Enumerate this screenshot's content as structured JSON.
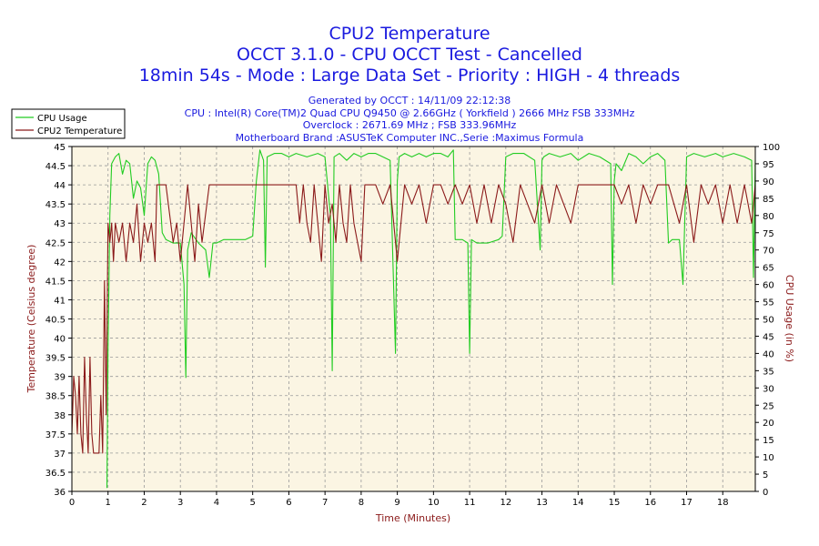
{
  "titles": {
    "line1": "CPU2 Temperature",
    "line2": "OCCT 3.1.0 - CPU OCCT Test - Cancelled",
    "line3": "18min 54s - Mode : Large Data Set - Priority : HIGH - 4 threads"
  },
  "info": {
    "line1": "Generated by OCCT : 14/11/09 22:12:38",
    "line2": "CPU : Intel(R) Core(TM)2 Quad CPU Q9450 @ 2.66GHz ( Yorkfield ) 2666 MHz FSB 333MHz",
    "line3": "Overclock : 2671.69 MHz ; FSB 333.96MHz",
    "line4": "Motherboard Brand :ASUSTeK Computer INC.,Serie :Maximus Formula"
  },
  "colors": {
    "usage": "#22cc22",
    "temperature": "#8b1a1a",
    "title": "#1a1adf",
    "axis_label": "#8b1a1a",
    "plot_bg": "#fbf5e3",
    "grid": "#9a9a9a"
  },
  "chart_data": {
    "type": "line",
    "xlabel": "Time (Minutes)",
    "ylabel_left": "Temperature (Celsius degree)",
    "ylabel_right": "CPU Usage (in %)",
    "xlim": [
      0,
      18.9
    ],
    "ylim_left": [
      36,
      45
    ],
    "ylim_right": [
      0,
      100
    ],
    "x_ticks": [
      "0",
      "1",
      "2",
      "3",
      "4",
      "5",
      "6",
      "7",
      "8",
      "9",
      "10",
      "11",
      "12",
      "13",
      "14",
      "15",
      "16",
      "17",
      "18"
    ],
    "y_ticks_left": [
      "36",
      "36.5",
      "37",
      "37.5",
      "38",
      "38.5",
      "39",
      "39.5",
      "40",
      "40.5",
      "41",
      "41.5",
      "42",
      "42.5",
      "43",
      "43.5",
      "44",
      "44.5",
      "45"
    ],
    "y_ticks_right": [
      "0",
      "5",
      "10",
      "15",
      "20",
      "25",
      "30",
      "35",
      "40",
      "45",
      "50",
      "55",
      "60",
      "65",
      "70",
      "75",
      "80",
      "85",
      "90",
      "95",
      "100"
    ],
    "grid": "vertical and horizontal dashed",
    "legend": "top-left",
    "series": [
      {
        "name": "CPU Usage",
        "axis": "right",
        "x": [
          0.97,
          1.0,
          1.05,
          1.1,
          1.2,
          1.3,
          1.4,
          1.5,
          1.6,
          1.7,
          1.8,
          1.9,
          2.0,
          2.1,
          2.2,
          2.3,
          2.4,
          2.5,
          2.6,
          2.8,
          3.0,
          3.1,
          3.15,
          3.2,
          3.3,
          3.5,
          3.7,
          3.8,
          3.9,
          4.0,
          4.2,
          4.5,
          4.8,
          5.0,
          5.1,
          5.2,
          5.3,
          5.35,
          5.4,
          5.6,
          5.8,
          6.0,
          6.2,
          6.5,
          6.8,
          7.0,
          7.15,
          7.2,
          7.25,
          7.4,
          7.6,
          7.8,
          8.0,
          8.2,
          8.4,
          8.6,
          8.8,
          8.95,
          9.0,
          9.05,
          9.2,
          9.4,
          9.6,
          9.8,
          10.0,
          10.2,
          10.4,
          10.55,
          10.6,
          10.8,
          10.95,
          11.0,
          11.05,
          11.2,
          11.5,
          11.8,
          11.9,
          12.0,
          12.2,
          12.5,
          12.8,
          12.95,
          13.0,
          13.05,
          13.2,
          13.5,
          13.8,
          14.0,
          14.3,
          14.6,
          14.9,
          14.95,
          15.0,
          15.05,
          15.2,
          15.4,
          15.6,
          15.8,
          16.0,
          16.2,
          16.4,
          16.5,
          16.6,
          16.8,
          16.9,
          17.0,
          17.2,
          17.5,
          17.8,
          18.0,
          18.3,
          18.6,
          18.8,
          18.85,
          18.9
        ],
        "y": [
          1,
          40,
          80,
          95,
          97,
          98,
          92,
          96,
          95,
          85,
          90,
          88,
          80,
          95,
          97,
          96,
          92,
          75,
          73,
          72,
          72,
          60,
          33,
          70,
          75,
          72,
          70,
          62,
          72,
          72,
          73,
          73,
          73,
          74,
          90,
          99,
          96,
          65,
          97,
          98,
          98,
          97,
          98,
          97,
          98,
          97,
          80,
          35,
          97,
          98,
          96,
          98,
          97,
          98,
          98,
          97,
          96,
          40,
          90,
          97,
          98,
          97,
          98,
          97,
          98,
          98,
          97,
          99,
          73,
          73,
          72,
          40,
          73,
          72,
          72,
          73,
          74,
          97,
          98,
          98,
          96,
          70,
          96,
          97,
          98,
          97,
          98,
          96,
          98,
          97,
          95,
          60,
          90,
          95,
          93,
          98,
          97,
          95,
          97,
          98,
          96,
          72,
          73,
          73,
          60,
          97,
          98,
          97,
          98,
          97,
          98,
          97,
          96,
          62,
          96
        ]
      },
      {
        "name": "CPU2 Temperature",
        "axis": "left",
        "x": [
          0.0,
          0.05,
          0.1,
          0.15,
          0.2,
          0.25,
          0.3,
          0.35,
          0.4,
          0.45,
          0.5,
          0.55,
          0.6,
          0.65,
          0.7,
          0.75,
          0.8,
          0.85,
          0.9,
          0.95,
          1.0,
          1.05,
          1.1,
          1.15,
          1.2,
          1.3,
          1.4,
          1.5,
          1.6,
          1.7,
          1.8,
          1.9,
          2.0,
          2.1,
          2.2,
          2.3,
          2.35,
          2.4,
          2.6,
          2.8,
          2.9,
          3.0,
          3.1,
          3.2,
          3.3,
          3.4,
          3.5,
          3.6,
          3.8,
          4.0,
          4.5,
          5.0,
          5.5,
          6.0,
          6.2,
          6.3,
          6.4,
          6.5,
          6.6,
          6.7,
          6.8,
          6.9,
          7.0,
          7.1,
          7.2,
          7.3,
          7.4,
          7.5,
          7.6,
          7.7,
          7.8,
          7.9,
          8.0,
          8.1,
          8.2,
          8.4,
          8.6,
          8.8,
          9.0,
          9.2,
          9.4,
          9.6,
          9.8,
          10.0,
          10.2,
          10.4,
          10.6,
          10.8,
          11.0,
          11.2,
          11.4,
          11.6,
          11.8,
          12.0,
          12.2,
          12.4,
          12.6,
          12.8,
          13.0,
          13.2,
          13.4,
          13.6,
          13.8,
          14.0,
          14.5,
          15.0,
          15.2,
          15.4,
          15.6,
          15.8,
          16.0,
          16.2,
          16.5,
          16.8,
          17.0,
          17.2,
          17.4,
          17.6,
          17.8,
          18.0,
          18.2,
          18.4,
          18.6,
          18.8,
          18.9
        ],
        "y": [
          37.5,
          39.0,
          38.5,
          37.5,
          39.0,
          37.5,
          37.0,
          39.5,
          38.0,
          37.0,
          39.5,
          37.5,
          37.0,
          37.0,
          37.0,
          37.0,
          38.5,
          37.0,
          41.5,
          38.0,
          43.0,
          42.5,
          43.0,
          42.0,
          43.0,
          42.5,
          43.0,
          42.0,
          43.0,
          42.5,
          43.5,
          42.0,
          43.0,
          42.5,
          43.0,
          42.0,
          44.0,
          44.0,
          44.0,
          42.5,
          43.0,
          42.0,
          43.0,
          44.0,
          43.0,
          42.0,
          43.5,
          42.5,
          44.0,
          44.0,
          44.0,
          44.0,
          44.0,
          44.0,
          44.0,
          43.0,
          44.0,
          43.0,
          42.5,
          44.0,
          43.0,
          42.0,
          44.0,
          43.0,
          43.5,
          42.5,
          44.0,
          43.0,
          42.5,
          44.0,
          43.0,
          42.5,
          42.0,
          44.0,
          44.0,
          44.0,
          43.5,
          44.0,
          42.0,
          44.0,
          43.5,
          44.0,
          43.0,
          44.0,
          44.0,
          43.5,
          44.0,
          43.5,
          44.0,
          43.0,
          44.0,
          43.0,
          44.0,
          43.5,
          42.5,
          44.0,
          43.5,
          43.0,
          44.0,
          43.0,
          44.0,
          43.5,
          43.0,
          44.0,
          44.0,
          44.0,
          43.5,
          44.0,
          43.0,
          44.0,
          43.5,
          44.0,
          44.0,
          43.0,
          44.0,
          42.5,
          44.0,
          43.5,
          44.0,
          43.0,
          44.0,
          43.0,
          44.0,
          43.0,
          44.0
        ]
      }
    ]
  }
}
